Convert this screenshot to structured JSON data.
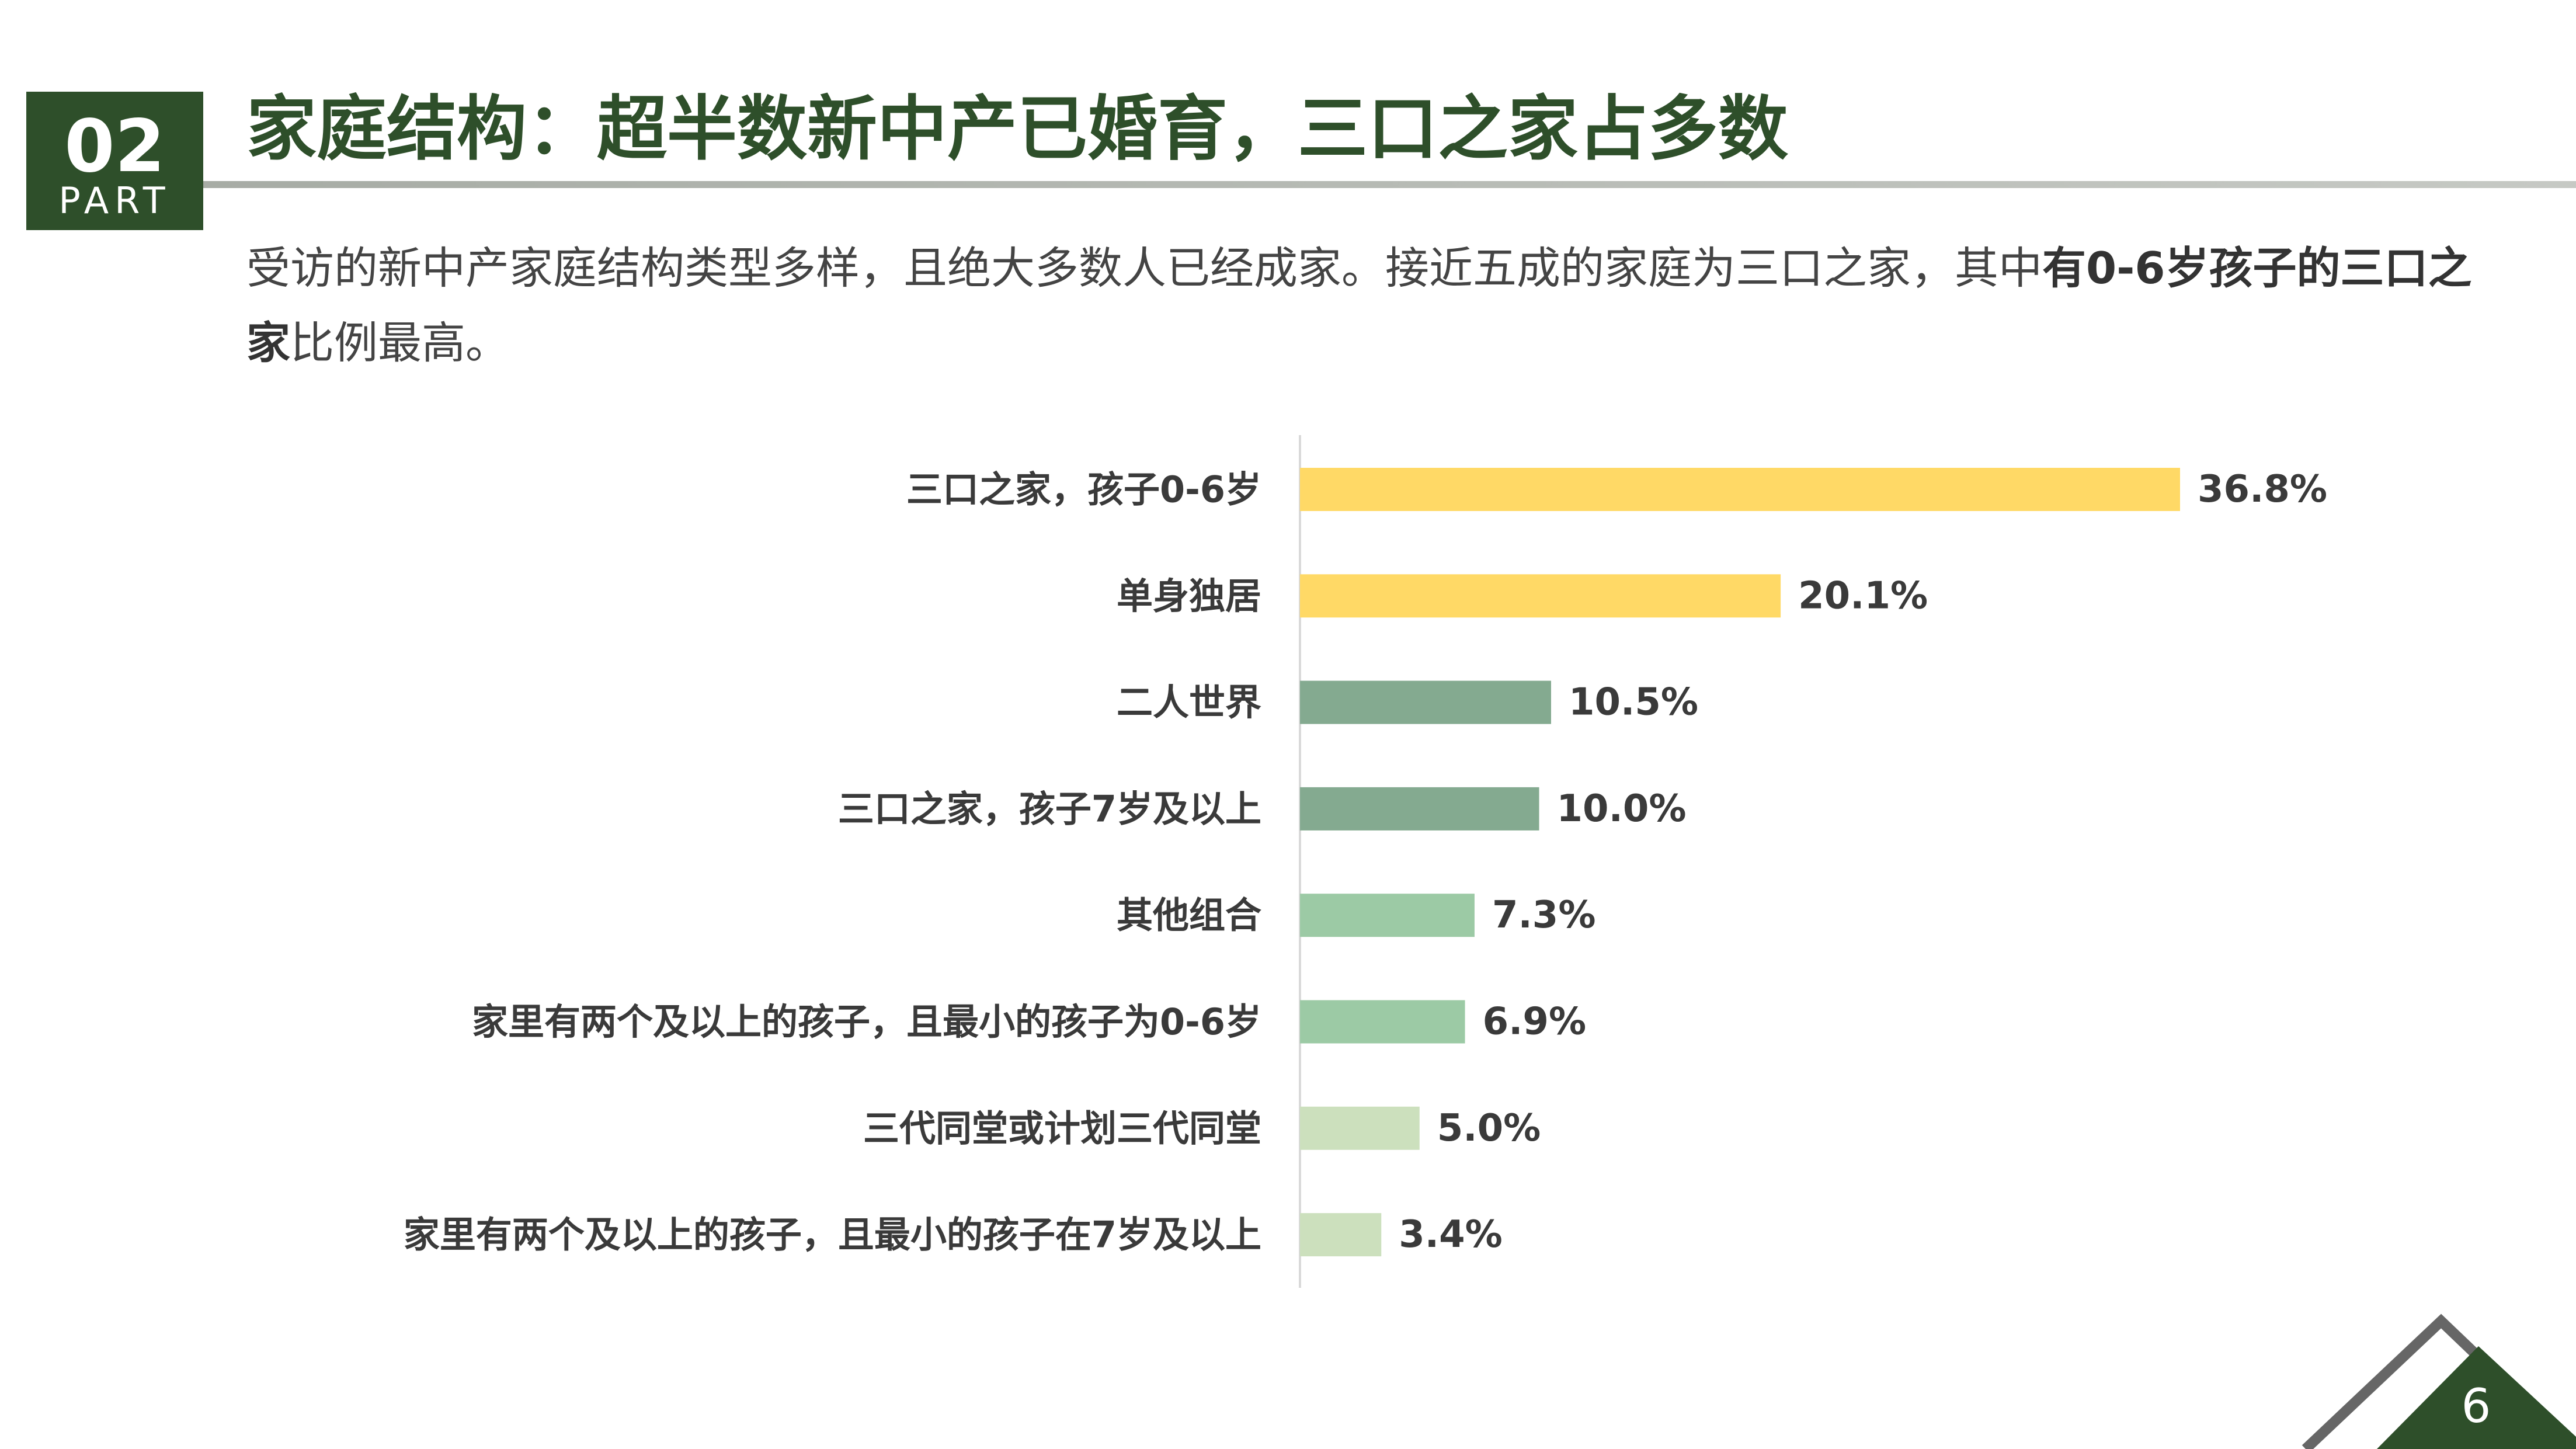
{
  "part": {
    "number": "02",
    "label": "PART"
  },
  "title": "家庭结构：超半数新中产已婚育，三口之家占多数",
  "intro": {
    "text_normal_1": "受访的新中产家庭结构类型多样，且绝大多数人已经成家。接近五成的家庭为三口之家，其中",
    "text_bold": "有0-6岁孩子的三口之家",
    "text_normal_2": "比例最高。"
  },
  "page_number": "6",
  "colors": {
    "dark_green": "#2e4f2a",
    "yellow": "#ffd966",
    "mid_green": "#84aa90",
    "light_green": "#9ccaa5",
    "pale_green": "#cce0bd"
  },
  "chart_data": {
    "type": "bar",
    "orientation": "horizontal",
    "categories": [
      "三口之家，孩子0-6岁",
      "单身独居",
      "二人世界",
      "三口之家，孩子7岁及以上",
      "其他组合",
      "家里有两个及以上的孩子，且最小的孩子为0-6岁",
      "三代同堂或计划三代同堂",
      "家里有两个及以上的孩子，且最小的孩子在7岁及以上"
    ],
    "values": [
      36.8,
      20.1,
      10.5,
      10.0,
      7.3,
      6.9,
      5.0,
      3.4
    ],
    "value_labels": [
      "36.8%",
      "20.1%",
      "10.5%",
      "10.0%",
      "7.3%",
      "6.9%",
      "5.0%",
      "3.4%"
    ],
    "bar_colors": [
      "#ffd966",
      "#ffd966",
      "#84aa90",
      "#84aa90",
      "#9ccaa5",
      "#9ccaa5",
      "#cce0bd",
      "#cce0bd"
    ],
    "unit": "%",
    "xlim": [
      0,
      40
    ],
    "grid": false,
    "legend": "none"
  }
}
